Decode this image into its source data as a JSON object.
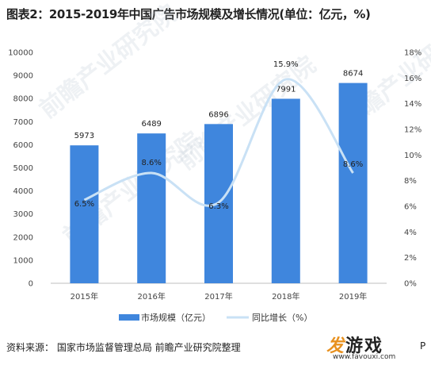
{
  "title": "图表2：2015-2019年中国广告市场规模及增长情况(单位：亿元，%)",
  "chart_data": {
    "type": "bar",
    "categories": [
      "2015年",
      "2016年",
      "2017年",
      "2018年",
      "2019年"
    ],
    "series": [
      {
        "name": "市场规模（亿元）",
        "type": "bar",
        "axis": "left",
        "values": [
          5973,
          6489,
          6896,
          7991,
          8674
        ],
        "color": "#3f86dd"
      },
      {
        "name": "同比增长（%）",
        "type": "line",
        "axis": "right",
        "values": [
          6.5,
          8.6,
          6.3,
          15.9,
          8.6
        ],
        "color": "#c9e1f5"
      }
    ],
    "bar_labels": [
      "5973",
      "6489",
      "6896",
      "7991",
      "8674"
    ],
    "line_labels": [
      "6.5%",
      "8.6%",
      "6.3%",
      "15.9%",
      "8.6%"
    ],
    "y_left": {
      "min": 0,
      "max": 10000,
      "ticks": [
        "0",
        "1000",
        "2000",
        "3000",
        "4000",
        "5000",
        "6000",
        "7000",
        "8000",
        "9000",
        "10000"
      ]
    },
    "y_right": {
      "min": 0,
      "max": 18,
      "ticks": [
        "0%",
        "2%",
        "4%",
        "6%",
        "8%",
        "10%",
        "12%",
        "14%",
        "16%",
        "18%"
      ]
    },
    "grid": false,
    "legend": "bottom"
  },
  "source": "资料来源：  国家市场监督管理总局 前瞻产业研究院整理",
  "watermark": "前瞻产业研究院",
  "logo": {
    "main": "游戏",
    "main_accent": "发",
    "sub": "www.favouxi.com"
  },
  "cut_text": "P",
  "colors": {
    "bar": "#3f86dd",
    "line": "#c9e1f5",
    "axis": "#bfbfbf"
  }
}
